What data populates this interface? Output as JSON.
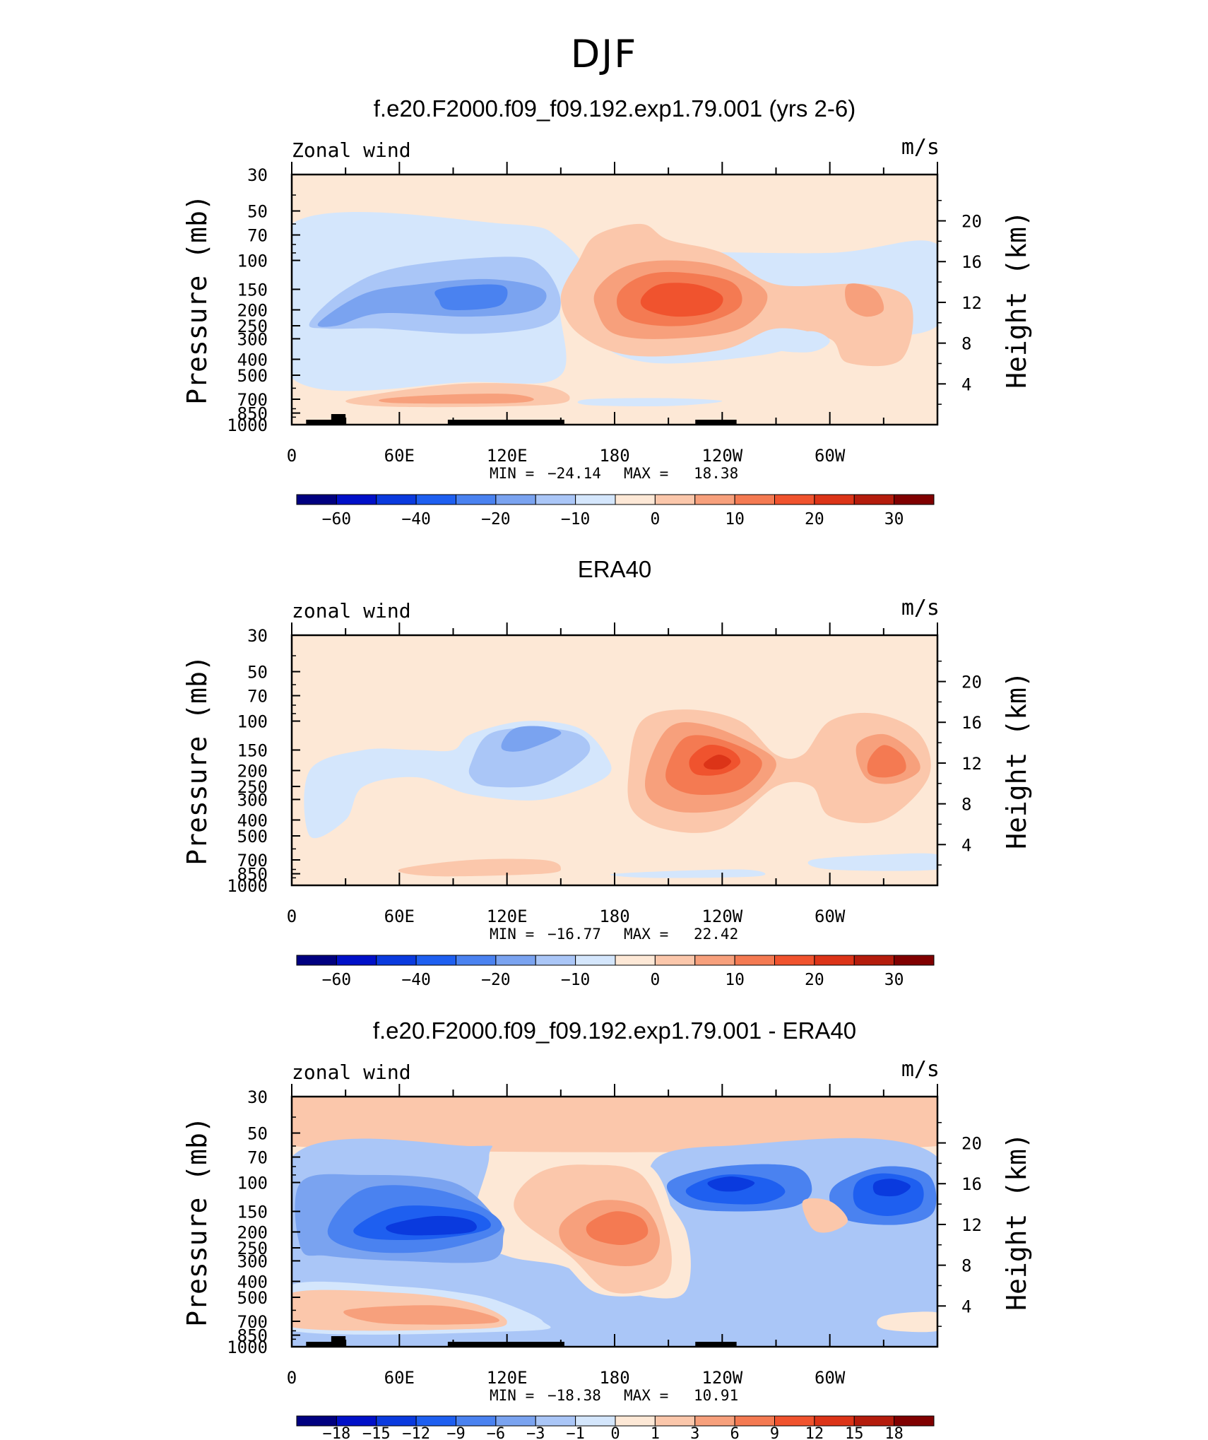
{
  "figure": {
    "title": "DJF"
  },
  "chart_data": [
    {
      "type": "heatmap",
      "title": "f.e20.F2000.f09_f09.192.exp1.79.001 (yrs 2-6)",
      "left_label": "Zonal wind",
      "units": "m/s",
      "ylabel": "Pressure (mb)",
      "ylabel_right": "Height (km)",
      "x_ticks": [
        "0",
        "60E",
        "120E",
        "180",
        "120W",
        "60W"
      ],
      "y_ticks": [
        "30",
        "50",
        "70",
        "100",
        "150",
        "200",
        "250",
        "300",
        "400",
        "500",
        "700",
        "850",
        "1000"
      ],
      "y2_ticks": [
        "20",
        "16",
        "12",
        "8",
        "4"
      ],
      "stats": {
        "min_label": "MIN =",
        "min": "−24.14",
        "max_label": "MAX =",
        "max": "18.38"
      },
      "colorbar": {
        "labels": [
          "−60",
          "−40",
          "−20",
          "−10",
          "0",
          "10",
          "20",
          "30"
        ]
      },
      "background_color": "#fde8d6",
      "regions": [
        {
          "level": "-5",
          "color": "#d4e6fc",
          "x": [
            0,
            360
          ],
          "y": [
            30,
            1000
          ]
        },
        {
          "level": "-10",
          "color": "#aac6f7"
        },
        {
          "level": "-20",
          "color": "#7aa3f0"
        },
        {
          "level": "-25",
          "color": "#4f82ea"
        },
        {
          "level": "5",
          "color": "#fbc7ab"
        },
        {
          "level": "10",
          "color": "#f7a07c"
        },
        {
          "level": "15",
          "color": "#f47a52"
        },
        {
          "level": "20",
          "color": "#f0532e"
        }
      ],
      "blobs": [
        {
          "color": "#d4e6fc",
          "lon": [
            0,
            360
          ],
          "p": [
            55,
            330
          ]
        },
        {
          "color": "#d4e6fc",
          "lon": [
            0,
            360
          ],
          "p": [
            30,
            1000
          ]
        }
      ]
    },
    {
      "type": "heatmap",
      "title": "ERA40",
      "left_label": "zonal wind",
      "units": "m/s",
      "ylabel": "Pressure (mb)",
      "ylabel_right": "Height (km)",
      "x_ticks": [
        "0",
        "60E",
        "120E",
        "180",
        "120W",
        "60W"
      ],
      "y_ticks": [
        "30",
        "50",
        "70",
        "100",
        "150",
        "200",
        "250",
        "300",
        "400",
        "500",
        "700",
        "850",
        "1000"
      ],
      "y2_ticks": [
        "20",
        "16",
        "12",
        "8",
        "4"
      ],
      "stats": {
        "min_label": "MIN =",
        "min": "−16.77",
        "max_label": "MAX =",
        "max": "22.42"
      },
      "colorbar": {
        "labels": [
          "−60",
          "−40",
          "−20",
          "−10",
          "0",
          "10",
          "20",
          "30"
        ]
      }
    },
    {
      "type": "heatmap",
      "title": "f.e20.F2000.f09_f09.192.exp1.79.001 - ERA40",
      "left_label": "zonal wind",
      "units": "m/s",
      "ylabel": "Pressure (mb)",
      "ylabel_right": "Height (km)",
      "x_ticks": [
        "0",
        "60E",
        "120E",
        "180",
        "120W",
        "60W"
      ],
      "y_ticks": [
        "30",
        "50",
        "70",
        "100",
        "150",
        "200",
        "250",
        "300",
        "400",
        "500",
        "700",
        "850",
        "1000"
      ],
      "y2_ticks": [
        "20",
        "16",
        "12",
        "8",
        "4"
      ],
      "stats": {
        "min_label": "MIN =",
        "min": "−18.38",
        "max_label": "MAX =",
        "max": "10.91"
      },
      "colorbar": {
        "labels": [
          "−18",
          "−15",
          "−12",
          "−9",
          "−6",
          "−3",
          "−1",
          "0",
          "1",
          "3",
          "6",
          "9",
          "12",
          "15",
          "18"
        ]
      }
    }
  ],
  "palette": {
    "colorbar_16": [
      "#000080",
      "#0010c8",
      "#0a3ade",
      "#1e5ff0",
      "#4a82f0",
      "#7aa3f0",
      "#aac6f7",
      "#d4e6fc",
      "#fde8d6",
      "#fbc7ab",
      "#f7a07c",
      "#f47a52",
      "#f0532e",
      "#dc3418",
      "#b41c0c",
      "#800000"
    ],
    "colorbar_diff": [
      "#000080",
      "#0010c8",
      "#0a3ade",
      "#1e5ff0",
      "#4a82f0",
      "#7aa3f0",
      "#aac6f7",
      "#d4e6fc",
      "#fde8d6",
      "#fbc7ab",
      "#f7a07c",
      "#f47a52",
      "#f0532e",
      "#dc3418",
      "#b41c0c",
      "#800000"
    ]
  }
}
